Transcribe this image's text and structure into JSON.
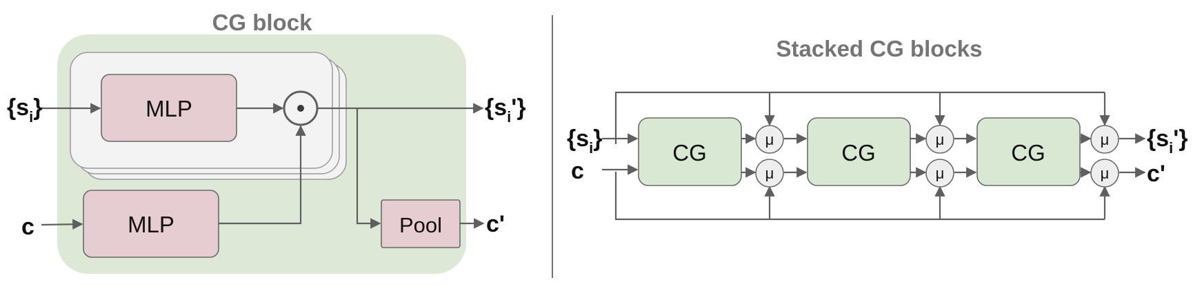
{
  "cg_block": {
    "title": "CG block",
    "mlp_top": "MLP",
    "mlp_bottom": "MLP",
    "pool": "Pool",
    "input_s_open": "{s",
    "input_s_sub": "i",
    "input_s_close": "}",
    "input_c": "c",
    "output_s_open": "{s",
    "output_s_sub": "i",
    "output_s_close": "'}",
    "output_c": "c'"
  },
  "stacked": {
    "title": "Stacked CG blocks",
    "blocks": [
      "CG",
      "CG",
      "CG"
    ],
    "mu": "μ",
    "input_s_open": "{s",
    "input_s_sub": "i",
    "input_s_close": "}",
    "input_c": "c",
    "output_s_open": "{s",
    "output_s_sub": "i",
    "output_s_close": "'}",
    "output_c": "c'"
  },
  "colors": {
    "block_bg": "#dde8d6",
    "mlp_fill": "#e6cdd2",
    "card_fill": "#f3f3f3",
    "cg_fill": "#d9e8d3",
    "line": "#5f5f5f",
    "title_gray": "#757575",
    "divider": "#6e6e6e"
  }
}
